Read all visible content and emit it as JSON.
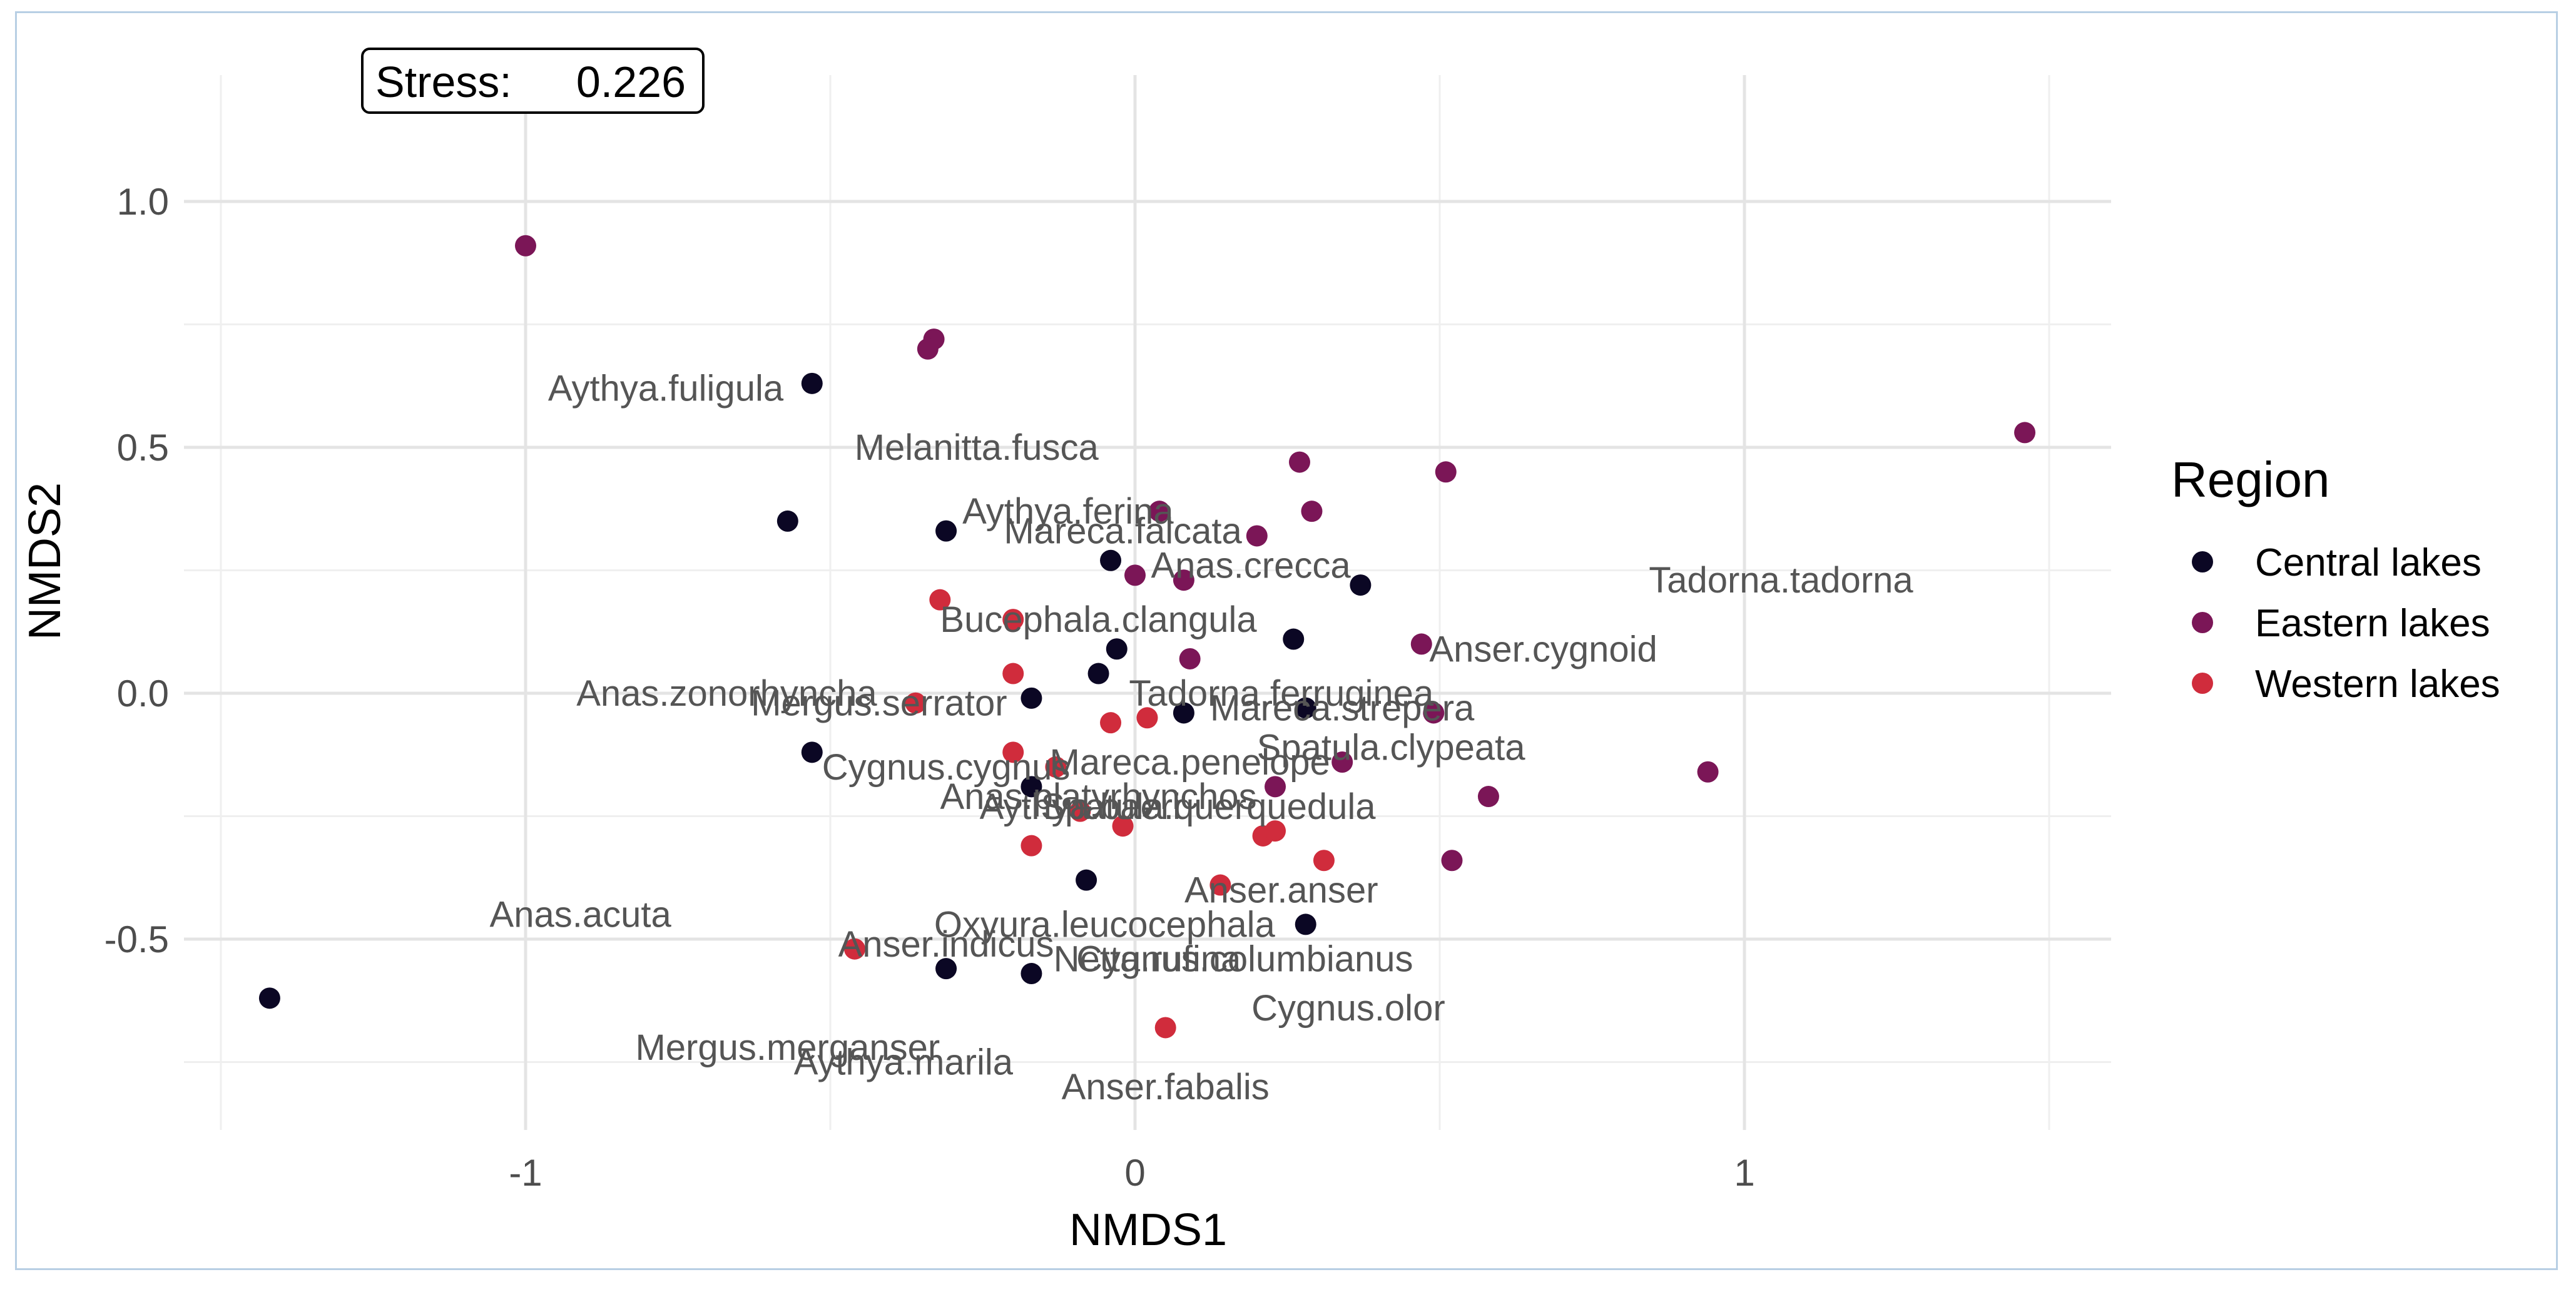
{
  "chart_data": {
    "type": "scatter",
    "xlabel": "NMDS1",
    "ylabel": "NMDS2",
    "xlim": [
      -1.5,
      1.6
    ],
    "ylim": [
      -0.88,
      1.25
    ],
    "x_major_ticks": [
      -1,
      0,
      1
    ],
    "x_minor_ticks": [
      -1.5,
      -0.5,
      0.5,
      1.5
    ],
    "y_major_ticks": [
      -0.5,
      0.0,
      0.5,
      1.0
    ],
    "y_minor_ticks": [
      -0.75,
      -0.25,
      0.25,
      0.75
    ],
    "x_tick_labels": [
      "-1",
      "0",
      "1"
    ],
    "y_tick_labels": [
      "-0.5",
      "0.0",
      "0.5",
      "1.0"
    ],
    "annotation": {
      "label": "Stress:",
      "value": "0.226"
    },
    "legend": {
      "title": "Region",
      "position": "right"
    },
    "series": [
      {
        "name": "Central lakes",
        "color": "#0b0724",
        "points": [
          [
            -0.53,
            0.63
          ],
          [
            -0.57,
            0.35
          ],
          [
            -0.31,
            0.33
          ],
          [
            -0.04,
            0.27
          ],
          [
            0.37,
            0.22
          ],
          [
            0.26,
            0.11
          ],
          [
            -0.03,
            0.09
          ],
          [
            -0.06,
            0.04
          ],
          [
            -0.17,
            -0.01
          ],
          [
            0.08,
            -0.04
          ],
          [
            0.28,
            -0.03
          ],
          [
            -0.53,
            -0.12
          ],
          [
            -0.17,
            -0.19
          ],
          [
            -0.08,
            -0.38
          ],
          [
            0.28,
            -0.47
          ],
          [
            -0.31,
            -0.56
          ],
          [
            -0.17,
            -0.57
          ],
          [
            -1.42,
            -0.62
          ]
        ]
      },
      {
        "name": "Eastern lakes",
        "color": "#7b1657",
        "points": [
          [
            -1.0,
            0.91
          ],
          [
            -0.33,
            0.72
          ],
          [
            -0.34,
            0.7
          ],
          [
            1.46,
            0.53
          ],
          [
            0.27,
            0.47
          ],
          [
            0.51,
            0.45
          ],
          [
            0.04,
            0.37
          ],
          [
            0.29,
            0.37
          ],
          [
            0.2,
            0.32
          ],
          [
            0.0,
            0.24
          ],
          [
            0.08,
            0.23
          ],
          [
            0.47,
            0.1
          ],
          [
            0.09,
            0.07
          ],
          [
            0.49,
            -0.04
          ],
          [
            0.34,
            -0.14
          ],
          [
            0.94,
            -0.16
          ],
          [
            0.23,
            -0.19
          ],
          [
            0.58,
            -0.21
          ],
          [
            0.52,
            -0.34
          ]
        ]
      },
      {
        "name": "Western lakes",
        "color": "#d02c3c",
        "points": [
          [
            -0.32,
            0.19
          ],
          [
            -0.2,
            0.15
          ],
          [
            -0.2,
            0.04
          ],
          [
            -0.36,
            -0.02
          ],
          [
            0.02,
            -0.05
          ],
          [
            -0.04,
            -0.06
          ],
          [
            -0.2,
            -0.12
          ],
          [
            -0.13,
            -0.15
          ],
          [
            -0.09,
            -0.24
          ],
          [
            -0.02,
            -0.27
          ],
          [
            0.21,
            -0.29
          ],
          [
            0.23,
            -0.28
          ],
          [
            -0.17,
            -0.31
          ],
          [
            0.31,
            -0.34
          ],
          [
            0.14,
            -0.39
          ],
          [
            -0.46,
            -0.52
          ],
          [
            0.05,
            -0.68
          ]
        ]
      }
    ],
    "species_labels": [
      {
        "text": "Aythya.fuligula",
        "x": -0.77,
        "y": 0.62
      },
      {
        "text": "Melanitta.fusca",
        "x": -0.26,
        "y": 0.5
      },
      {
        "text": "Aythya.ferina",
        "x": -0.11,
        "y": 0.37
      },
      {
        "text": "Mareca.falcata",
        "x": -0.02,
        "y": 0.33
      },
      {
        "text": "Anas.crecca",
        "x": 0.19,
        "y": 0.26
      },
      {
        "text": "Tadorna.tadorna",
        "x": 1.06,
        "y": 0.23
      },
      {
        "text": "Bucephala.clangula",
        "x": -0.06,
        "y": 0.15
      },
      {
        "text": "Anser.cygnoid",
        "x": 0.67,
        "y": 0.09
      },
      {
        "text": "Anas.zonorhyncha",
        "x": -0.67,
        "y": 0.0
      },
      {
        "text": "Tadorna.ferruginea",
        "x": 0.24,
        "y": 0.0
      },
      {
        "text": "Mergus.serrator",
        "x": -0.42,
        "y": -0.02
      },
      {
        "text": "Mareca.strepera",
        "x": 0.34,
        "y": -0.03
      },
      {
        "text": "Spatula.clypeata",
        "x": 0.42,
        "y": -0.11
      },
      {
        "text": "Mareca.penelope",
        "x": 0.09,
        "y": -0.14
      },
      {
        "text": "Cygnus.cygnus",
        "x": -0.31,
        "y": -0.15
      },
      {
        "text": "Anas.platyrhynchos",
        "x": -0.06,
        "y": -0.21
      },
      {
        "text": "Aythya.baeri",
        "x": -0.09,
        "y": -0.23
      },
      {
        "text": "Spatula.querquedula",
        "x": 0.12,
        "y": -0.23
      },
      {
        "text": "Anser.anser",
        "x": 0.24,
        "y": -0.4
      },
      {
        "text": "Anas.acuta",
        "x": -0.91,
        "y": -0.45
      },
      {
        "text": "Oxyura.leucocephala",
        "x": -0.05,
        "y": -0.47
      },
      {
        "text": "Anser.indicus",
        "x": -0.31,
        "y": -0.51
      },
      {
        "text": "Netta.rufina",
        "x": 0.02,
        "y": -0.54
      },
      {
        "text": "Cygnus.columbianus",
        "x": 0.18,
        "y": -0.54
      },
      {
        "text": "Cygnus.olor",
        "x": 0.35,
        "y": -0.64
      },
      {
        "text": "Mergus.merganser",
        "x": -0.57,
        "y": -0.72
      },
      {
        "text": "Aythya.marila",
        "x": -0.38,
        "y": -0.75
      },
      {
        "text": "Anser.fabalis",
        "x": 0.05,
        "y": -0.8
      }
    ]
  }
}
